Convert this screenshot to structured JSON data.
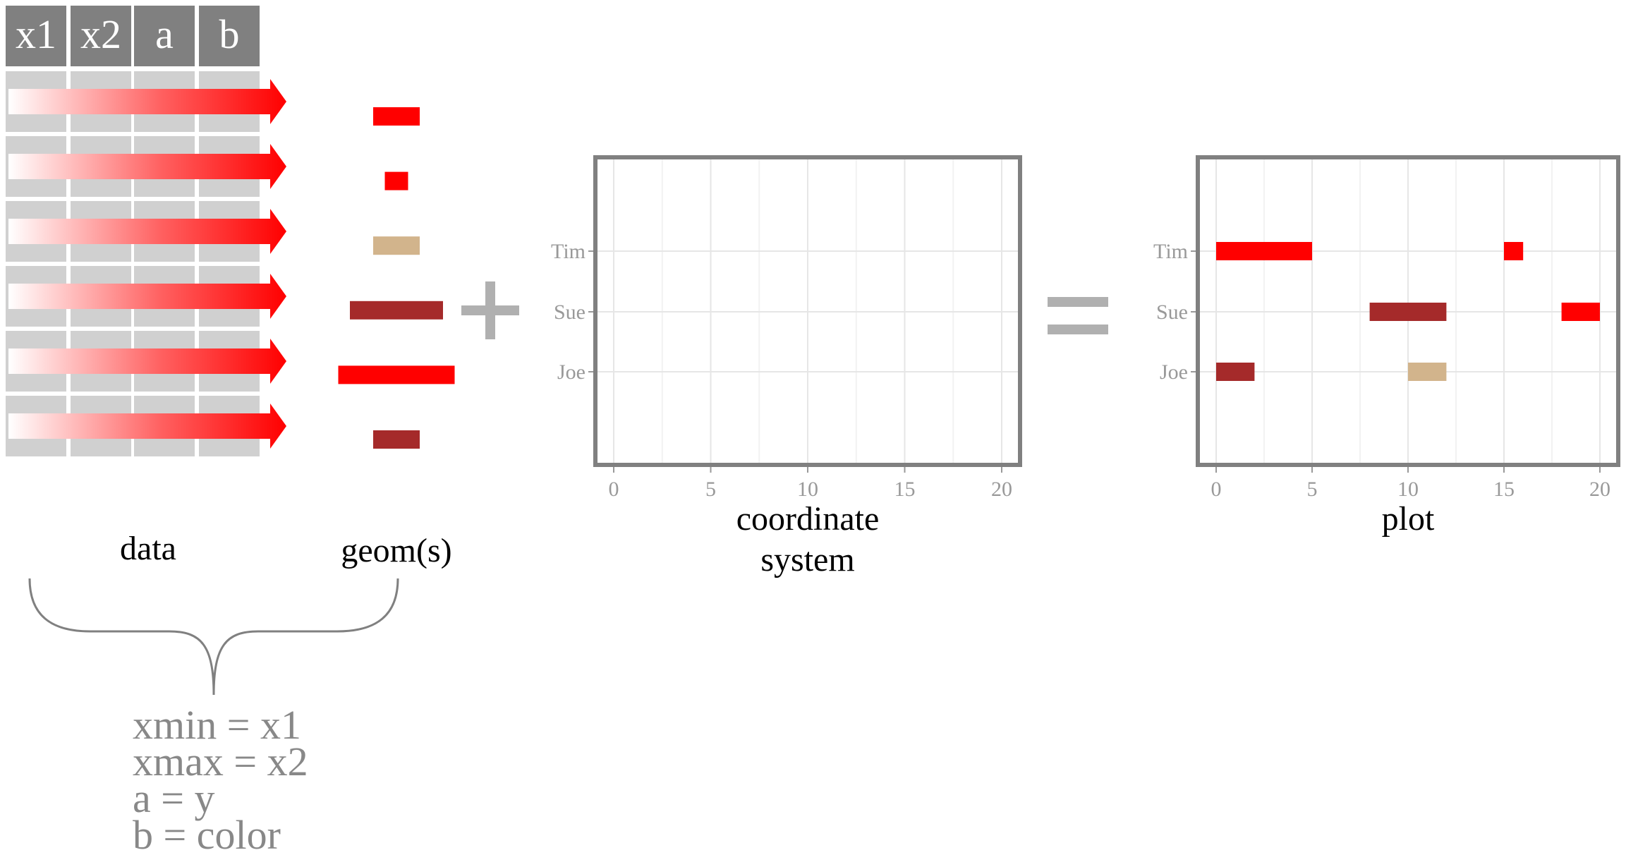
{
  "data_table": {
    "headers": [
      "x1",
      "x2",
      "a",
      "b"
    ],
    "row_count": 6
  },
  "geoms": [
    {
      "length": 2,
      "color": "#FF0000"
    },
    {
      "length": 1,
      "color": "#FF0000"
    },
    {
      "length": 2,
      "color": "#D2B48C"
    },
    {
      "length": 4,
      "color": "#A52A2A"
    },
    {
      "length": 5,
      "color": "#FF0000"
    },
    {
      "length": 2,
      "color": "#A52A2A"
    }
  ],
  "labels": {
    "data": "data",
    "geoms": "geom(s)",
    "coordinate_line1": "coordinate",
    "coordinate_line2": "system",
    "plot": "plot"
  },
  "operators": {
    "plus": "+",
    "equals": "="
  },
  "mappings": [
    "xmin = x1",
    "xmax = x2",
    "a = y",
    "b = color"
  ],
  "colors": {
    "header_bg": "#808080",
    "cell_bg": "#D0D0D0",
    "arrow_end": "#FF0000",
    "frame": "#808080",
    "axis_text": "#999999",
    "mapping_text": "#888888",
    "operator": "#B0B0B0"
  },
  "chart_data": {
    "type": "bar",
    "categories": [
      "Tim",
      "Sue",
      "Joe"
    ],
    "xlim": [
      0,
      20
    ],
    "x_ticks": [
      0,
      5,
      10,
      15,
      20
    ],
    "grid": true,
    "segments": [
      {
        "y": "Tim",
        "xmin": 0,
        "xmax": 5,
        "color": "#FF0000"
      },
      {
        "y": "Tim",
        "xmin": 15,
        "xmax": 16,
        "color": "#FF0000"
      },
      {
        "y": "Sue",
        "xmin": 8,
        "xmax": 12,
        "color": "#A52A2A"
      },
      {
        "y": "Sue",
        "xmin": 18,
        "xmax": 20,
        "color": "#FF0000"
      },
      {
        "y": "Joe",
        "xmin": 0,
        "xmax": 2,
        "color": "#A52A2A"
      },
      {
        "y": "Joe",
        "xmin": 10,
        "xmax": 12,
        "color": "#D2B48C"
      }
    ]
  }
}
